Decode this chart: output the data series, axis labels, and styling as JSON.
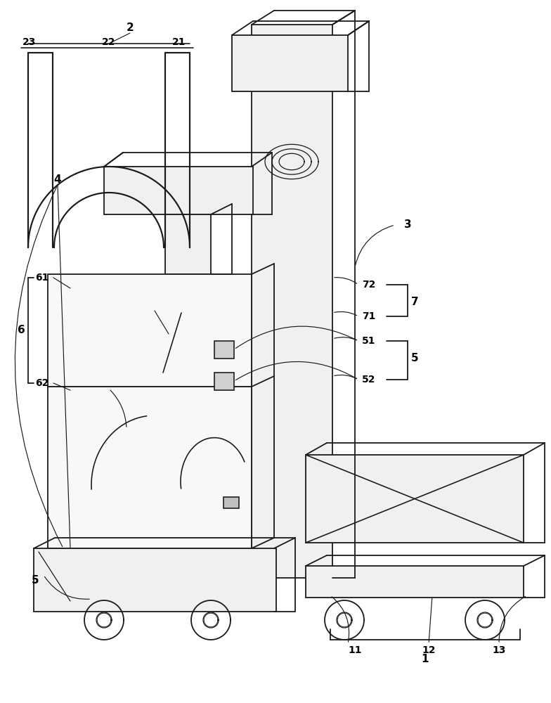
{
  "background_color": "#ffffff",
  "line_color": "#1a1a1a",
  "lw": 1.3,
  "fig_w": 7.84,
  "fig_h": 10.0,
  "dpi": 100
}
